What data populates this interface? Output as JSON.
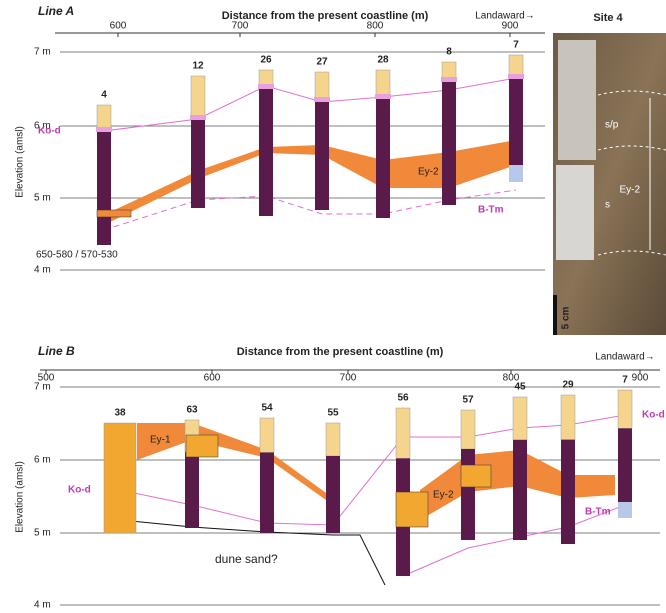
{
  "panels": [
    {
      "title": "Line A",
      "x_axis_label": "Distance from the present coastline (m)",
      "direction": "Landaward→",
      "y_axis_label": "Elevation (amsl)",
      "x_ticks": [
        "600",
        "700",
        "800",
        "900"
      ],
      "y_ticks": [
        "7 m",
        "6 m",
        "5 m",
        "4 m"
      ],
      "cores": [
        "4",
        "12",
        "26",
        "27",
        "28",
        "8",
        "7"
      ],
      "annotations": [
        "Ko-d",
        "B-Tm",
        "Ey-2",
        "650-580 / 570-530"
      ]
    },
    {
      "title": "Line B",
      "x_axis_label": "Distance from the present coastline (m)",
      "direction": "Landaward→",
      "y_axis_label": "Elevation (amsl)",
      "x_ticks": [
        "500",
        "600",
        "700",
        "800",
        "900"
      ],
      "y_ticks": [
        "7 m",
        "6 m",
        "5 m",
        "4 m"
      ],
      "cores": [
        "38",
        "63",
        "54",
        "55",
        "56",
        "57",
        "45",
        "29",
        "7"
      ],
      "annotations": [
        "Ey-1",
        "Ko-d",
        "Ey-2",
        "B-Tm",
        "Ko-d",
        "dune sand?"
      ]
    }
  ],
  "photo": {
    "title": "Site 4",
    "labels": [
      "s/p",
      "Ey-2",
      "s",
      "5 cm"
    ]
  }
}
